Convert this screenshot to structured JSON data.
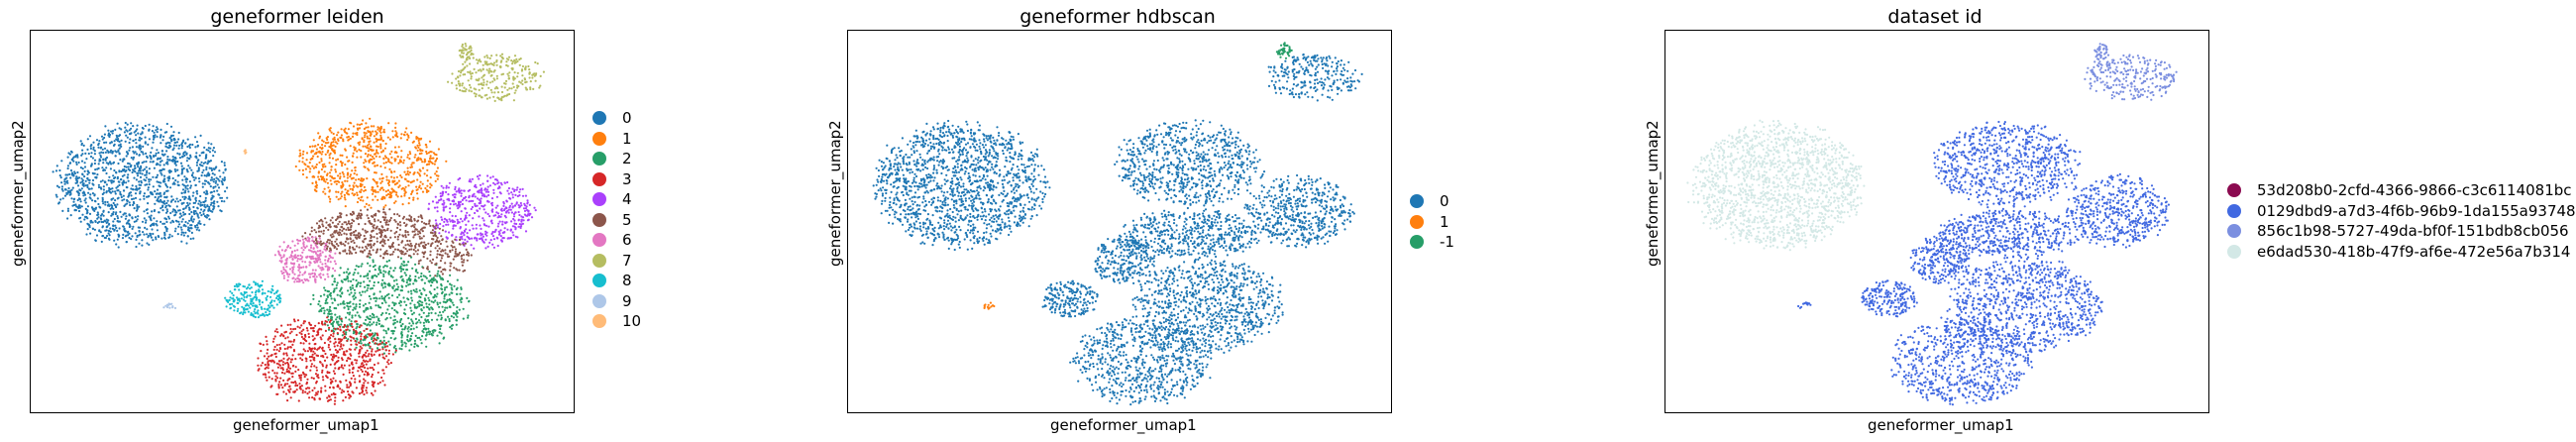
{
  "chart_data": [
    {
      "type": "scatter",
      "title": "geneformer leiden",
      "xlabel": "geneformer_umap1",
      "ylabel": "geneformer_umap2",
      "legend": "right",
      "grid": false,
      "series": [
        {
          "name": "0",
          "color": "#1f77b4",
          "clusters": [
            {
              "cx": 0.205,
              "cy": 0.597,
              "rx": 0.155,
              "ry": 0.158,
              "n": 1500
            }
          ]
        },
        {
          "name": "1",
          "color": "#ff7f0e",
          "clusters": [
            {
              "cx": 0.625,
              "cy": 0.652,
              "rx": 0.13,
              "ry": 0.108,
              "n": 750
            }
          ]
        },
        {
          "name": "2",
          "color": "#279e68",
          "clusters": [
            {
              "cx": 0.66,
              "cy": 0.285,
              "rx": 0.135,
              "ry": 0.118,
              "n": 850
            }
          ]
        },
        {
          "name": "3",
          "color": "#d62728",
          "clusters": [
            {
              "cx": 0.54,
              "cy": 0.139,
              "rx": 0.125,
              "ry": 0.11,
              "n": 700
            }
          ]
        },
        {
          "name": "4",
          "color": "#aa40fc",
          "clusters": [
            {
              "cx": 0.828,
              "cy": 0.53,
              "rx": 0.095,
              "ry": 0.09,
              "n": 500
            }
          ]
        },
        {
          "name": "5",
          "color": "#8c564b",
          "clusters": [
            {
              "cx": 0.63,
              "cy": 0.47,
              "rx": 0.125,
              "ry": 0.062,
              "n": 500
            },
            {
              "cx": 0.76,
              "cy": 0.41,
              "rx": 0.05,
              "ry": 0.05,
              "n": 120
            }
          ]
        },
        {
          "name": "6",
          "color": "#e377c2",
          "clusters": [
            {
              "cx": 0.505,
              "cy": 0.402,
              "rx": 0.055,
              "ry": 0.06,
              "n": 260
            }
          ]
        },
        {
          "name": "7",
          "color": "#b5bd61",
          "clusters": [
            {
              "cx": 0.855,
              "cy": 0.878,
              "rx": 0.085,
              "ry": 0.06,
              "n": 260
            },
            {
              "cx": 0.8,
              "cy": 0.945,
              "rx": 0.014,
              "ry": 0.022,
              "n": 40
            }
          ]
        },
        {
          "name": "8",
          "color": "#17becf",
          "clusters": [
            {
              "cx": 0.408,
              "cy": 0.3,
              "rx": 0.052,
              "ry": 0.046,
              "n": 200
            }
          ]
        },
        {
          "name": "9",
          "color": "#aec7e8",
          "clusters": [
            {
              "cx": 0.255,
              "cy": 0.283,
              "rx": 0.012,
              "ry": 0.01,
              "n": 12
            }
          ]
        },
        {
          "name": "10",
          "color": "#ffbb78",
          "clusters": [
            {
              "cx": 0.392,
              "cy": 0.685,
              "rx": 0.006,
              "ry": 0.008,
              "n": 5
            }
          ]
        }
      ]
    },
    {
      "type": "scatter",
      "title": "geneformer hdbscan",
      "xlabel": "geneformer_umap1",
      "ylabel": "geneformer_umap2",
      "legend": "right",
      "grid": false,
      "series": [
        {
          "name": "0",
          "color": "#1f77b4",
          "clusters": [
            {
              "cx": 0.205,
              "cy": 0.597,
              "rx": 0.155,
              "ry": 0.158,
              "n": 1500
            },
            {
              "cx": 0.625,
              "cy": 0.652,
              "rx": 0.13,
              "ry": 0.108,
              "n": 750
            },
            {
              "cx": 0.66,
              "cy": 0.285,
              "rx": 0.135,
              "ry": 0.118,
              "n": 850
            },
            {
              "cx": 0.54,
              "cy": 0.139,
              "rx": 0.125,
              "ry": 0.11,
              "n": 700
            },
            {
              "cx": 0.828,
              "cy": 0.53,
              "rx": 0.095,
              "ry": 0.09,
              "n": 500
            },
            {
              "cx": 0.63,
              "cy": 0.47,
              "rx": 0.125,
              "ry": 0.062,
              "n": 500
            },
            {
              "cx": 0.505,
              "cy": 0.402,
              "rx": 0.055,
              "ry": 0.06,
              "n": 260
            },
            {
              "cx": 0.855,
              "cy": 0.878,
              "rx": 0.085,
              "ry": 0.06,
              "n": 260
            },
            {
              "cx": 0.408,
              "cy": 0.3,
              "rx": 0.052,
              "ry": 0.046,
              "n": 200
            }
          ]
        },
        {
          "name": "1",
          "color": "#ff7f0e",
          "clusters": [
            {
              "cx": 0.255,
              "cy": 0.283,
              "rx": 0.012,
              "ry": 0.01,
              "n": 12
            }
          ]
        },
        {
          "name": "-1",
          "color": "#279e68",
          "clusters": [
            {
              "cx": 0.8,
              "cy": 0.945,
              "rx": 0.014,
              "ry": 0.022,
              "n": 40
            }
          ]
        }
      ]
    },
    {
      "type": "scatter",
      "title": "dataset id",
      "xlabel": "geneformer_umap1",
      "ylabel": "geneformer_umap2",
      "legend": "right",
      "grid": false,
      "series": [
        {
          "name": "53d208b0-2cfd-4366-9866-c3c6114081bc",
          "color": "#8b0a50",
          "clusters": []
        },
        {
          "name": "0129dbd9-a7d3-4f6b-96b9-1da155a93748",
          "color": "#4169e1",
          "clusters": [
            {
              "cx": 0.625,
              "cy": 0.652,
              "rx": 0.13,
              "ry": 0.108,
              "n": 750
            },
            {
              "cx": 0.66,
              "cy": 0.285,
              "rx": 0.135,
              "ry": 0.118,
              "n": 850
            },
            {
              "cx": 0.54,
              "cy": 0.139,
              "rx": 0.125,
              "ry": 0.11,
              "n": 700
            },
            {
              "cx": 0.828,
              "cy": 0.53,
              "rx": 0.095,
              "ry": 0.09,
              "n": 500
            },
            {
              "cx": 0.63,
              "cy": 0.47,
              "rx": 0.125,
              "ry": 0.062,
              "n": 500
            },
            {
              "cx": 0.505,
              "cy": 0.402,
              "rx": 0.055,
              "ry": 0.06,
              "n": 260
            },
            {
              "cx": 0.408,
              "cy": 0.3,
              "rx": 0.052,
              "ry": 0.046,
              "n": 200
            },
            {
              "cx": 0.255,
              "cy": 0.283,
              "rx": 0.012,
              "ry": 0.01,
              "n": 12
            }
          ]
        },
        {
          "name": "856c1b98-5727-49da-bf0f-151bdb8cb056",
          "color": "#7b8fe0",
          "clusters": [
            {
              "cx": 0.855,
              "cy": 0.878,
              "rx": 0.085,
              "ry": 0.06,
              "n": 260
            },
            {
              "cx": 0.8,
              "cy": 0.945,
              "rx": 0.014,
              "ry": 0.022,
              "n": 40
            }
          ]
        },
        {
          "name": "e6dad530-418b-47f9-af6e-472e56a7b314",
          "color": "#d3e8e6",
          "clusters": [
            {
              "cx": 0.205,
              "cy": 0.597,
              "rx": 0.155,
              "ry": 0.158,
              "n": 1500
            }
          ]
        }
      ]
    }
  ]
}
